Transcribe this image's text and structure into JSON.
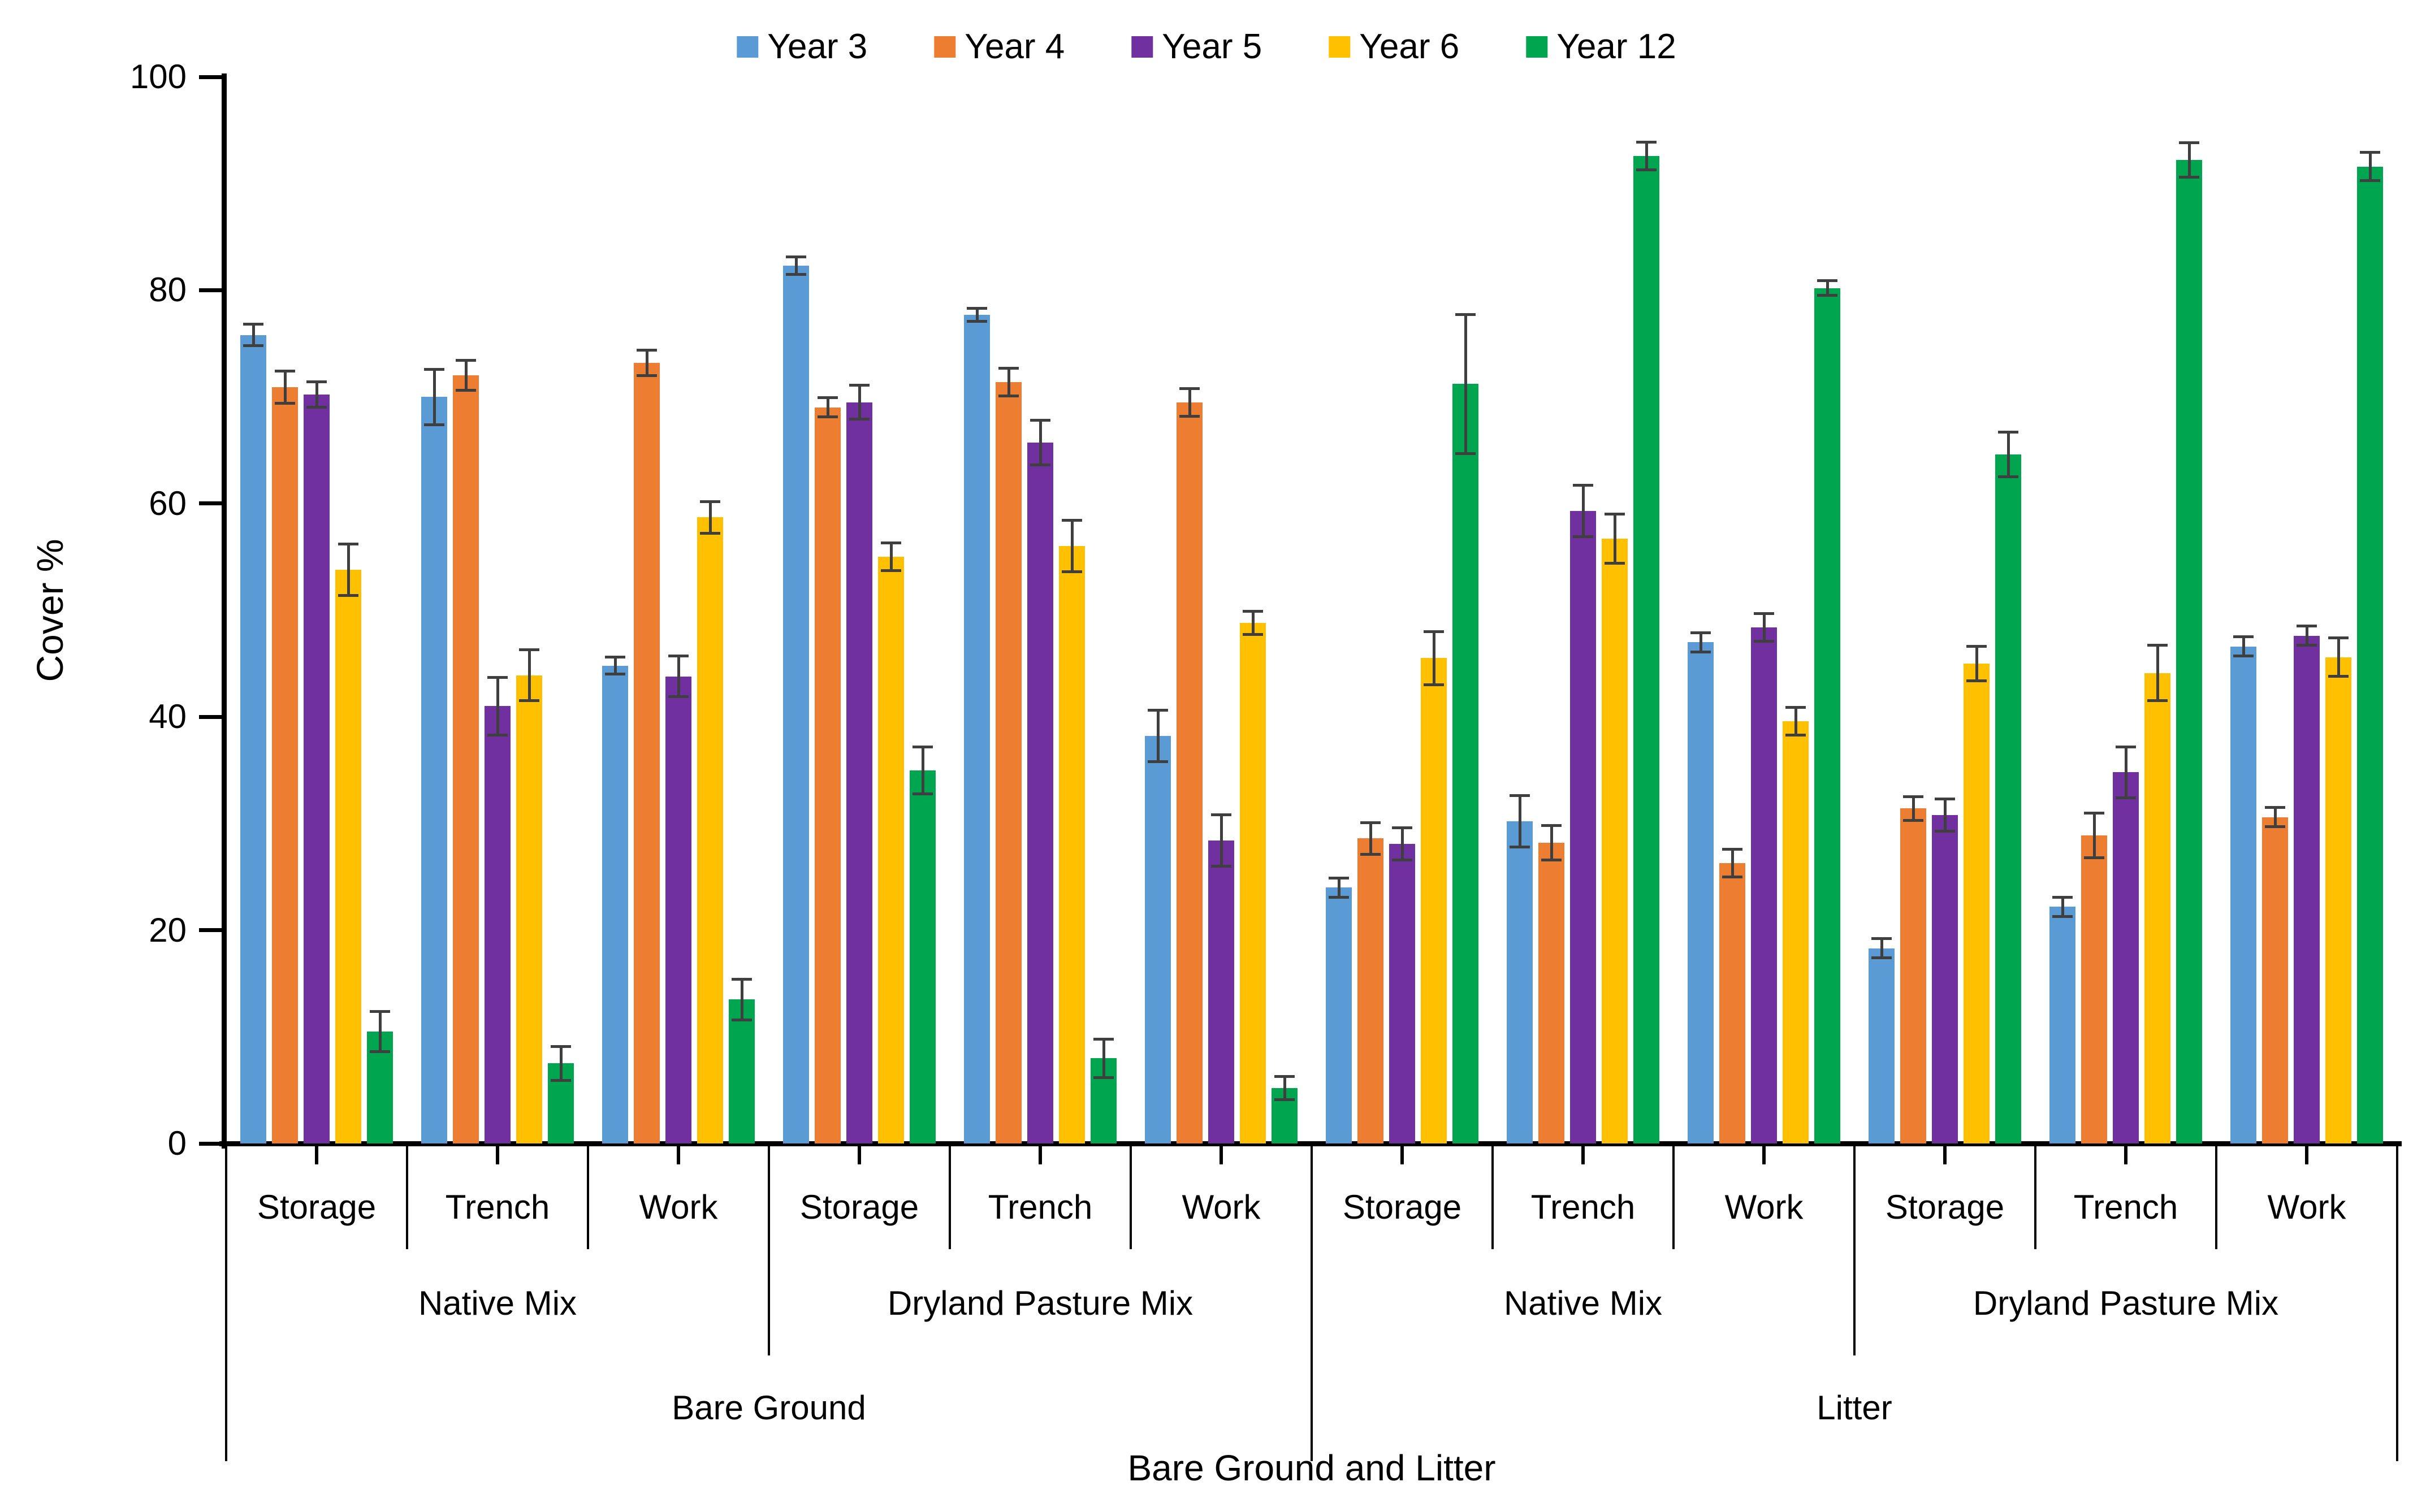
{
  "colors": {
    "year3": "#5B9BD5",
    "year4": "#ED7D31",
    "year5": "#7030A0",
    "year6": "#FFC000",
    "year12": "#00A550",
    "error_bar": "#3f3f3f",
    "axis": "#000000"
  },
  "chart_data": {
    "type": "bar",
    "title": "",
    "xlabel": "Bare Ground and Litter",
    "ylabel": "Cover %",
    "ylim": [
      0,
      100
    ],
    "yticks": [
      0,
      20,
      40,
      60,
      80,
      100
    ],
    "grid": false,
    "legend_position": "top-center",
    "error_bars": true,
    "series": [
      {
        "name": "Year 3",
        "color_key": "year3"
      },
      {
        "name": "Year 4",
        "color_key": "year4"
      },
      {
        "name": "Year 5",
        "color_key": "year5"
      },
      {
        "name": "Year 6",
        "color_key": "year6"
      },
      {
        "name": "Year 12",
        "color_key": "year12"
      }
    ],
    "hierarchy": {
      "zones": [
        "Storage",
        "Trench",
        "Work"
      ],
      "mixes": [
        "Native Mix",
        "Dryland Pasture Mix"
      ],
      "grounds": [
        "Bare Ground",
        "Litter"
      ]
    },
    "groups": [
      {
        "ground": "Bare Ground",
        "mix": "Native Mix",
        "zone": "Storage",
        "values": [
          75.8,
          70.9,
          70.2,
          53.8,
          10.5
        ],
        "errors": [
          1.0,
          1.5,
          1.2,
          2.4,
          1.9
        ]
      },
      {
        "ground": "Bare Ground",
        "mix": "Native Mix",
        "zone": "Trench",
        "values": [
          70.0,
          72.0,
          41.0,
          43.9,
          7.5
        ],
        "errors": [
          2.6,
          1.4,
          2.7,
          2.4,
          1.6
        ]
      },
      {
        "ground": "Bare Ground",
        "mix": "Native Mix",
        "zone": "Work",
        "values": [
          44.8,
          73.2,
          43.8,
          58.7,
          13.5
        ],
        "errors": [
          0.8,
          1.2,
          1.9,
          1.5,
          1.9
        ]
      },
      {
        "ground": "Bare Ground",
        "mix": "Dryland Pasture Mix",
        "zone": "Storage",
        "values": [
          82.3,
          69.0,
          69.5,
          55.0,
          35.0
        ],
        "errors": [
          0.8,
          0.9,
          1.6,
          1.3,
          2.2
        ]
      },
      {
        "ground": "Bare Ground",
        "mix": "Dryland Pasture Mix",
        "zone": "Trench",
        "values": [
          77.7,
          71.4,
          65.7,
          56.0,
          8.0
        ],
        "errors": [
          0.6,
          1.3,
          2.1,
          2.4,
          1.8
        ]
      },
      {
        "ground": "Bare Ground",
        "mix": "Dryland Pasture Mix",
        "zone": "Work",
        "values": [
          38.2,
          69.5,
          28.4,
          48.8,
          5.2
        ],
        "errors": [
          2.4,
          1.3,
          2.4,
          1.1,
          1.1
        ]
      },
      {
        "ground": "Litter",
        "mix": "Native Mix",
        "zone": "Storage",
        "values": [
          24.0,
          28.6,
          28.1,
          45.5,
          71.2
        ],
        "errors": [
          0.9,
          1.5,
          1.5,
          2.5,
          6.5
        ]
      },
      {
        "ground": "Litter",
        "mix": "Native Mix",
        "zone": "Trench",
        "values": [
          30.2,
          28.2,
          59.3,
          56.7,
          92.6
        ],
        "errors": [
          2.4,
          1.6,
          2.4,
          2.3,
          1.3
        ]
      },
      {
        "ground": "Litter",
        "mix": "Native Mix",
        "zone": "Work",
        "values": [
          47.0,
          26.3,
          48.4,
          39.6,
          80.2
        ],
        "errors": [
          0.9,
          1.3,
          1.3,
          1.3,
          0.7
        ]
      },
      {
        "ground": "Litter",
        "mix": "Dryland Pasture Mix",
        "zone": "Storage",
        "values": [
          18.3,
          31.4,
          30.8,
          45.0,
          64.6
        ],
        "errors": [
          0.9,
          1.1,
          1.5,
          1.6,
          2.1
        ]
      },
      {
        "ground": "Litter",
        "mix": "Dryland Pasture Mix",
        "zone": "Trench",
        "values": [
          22.2,
          28.9,
          34.8,
          44.1,
          92.2
        ],
        "errors": [
          0.9,
          2.1,
          2.4,
          2.6,
          1.6
        ]
      },
      {
        "ground": "Litter",
        "mix": "Dryland Pasture Mix",
        "zone": "Work",
        "values": [
          46.6,
          30.6,
          47.6,
          45.6,
          91.6
        ],
        "errors": [
          0.9,
          0.9,
          0.9,
          1.8,
          1.3
        ]
      }
    ]
  }
}
